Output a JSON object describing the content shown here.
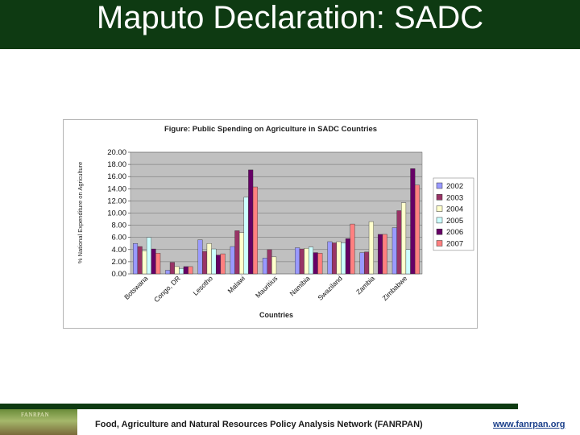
{
  "slide": {
    "title": "Maputo Declaration: SADC"
  },
  "footer": {
    "organization": "Food, Agriculture and Natural Resources Policy Analysis Network (FANRPAN)",
    "url": "www.fanrpan.org",
    "logo_text": "FANRPAN"
  },
  "colors": {
    "title_bar": "#0e3a12",
    "plot_bg": "#c0c0c0",
    "series": [
      "#9999ff",
      "#993366",
      "#ffffcc",
      "#ccffff",
      "#660066",
      "#ff8080"
    ]
  },
  "chart_data": {
    "type": "bar",
    "title": "Figure: Public Spending on Agriculture in SADC Countries",
    "xlabel": "Countries",
    "ylabel": "% National Expenditure on Agriculture",
    "ylim": [
      0,
      20
    ],
    "yticks": [
      "0.00",
      "2.00",
      "4.00",
      "6.00",
      "8.00",
      "10.00",
      "12.00",
      "14.00",
      "16.00",
      "18.00",
      "20.00"
    ],
    "grid": true,
    "legend": "right",
    "categories": [
      "Botswana",
      "Congo, DR",
      "Lesotho",
      "Malawi",
      "Mauritius",
      "Namibia",
      "Swaziland",
      "Zambia",
      "Zimbabwe"
    ],
    "series": [
      {
        "name": "2002",
        "values": [
          5.0,
          0.6,
          5.6,
          4.5,
          2.6,
          4.3,
          5.3,
          3.5,
          7.6
        ]
      },
      {
        "name": "2003",
        "values": [
          4.5,
          1.9,
          3.7,
          7.1,
          4.0,
          4.1,
          5.1,
          3.6,
          10.4
        ]
      },
      {
        "name": "2004",
        "values": [
          3.8,
          1.2,
          5.0,
          6.8,
          2.8,
          4.2,
          5.3,
          8.6,
          11.7
        ]
      },
      {
        "name": "2005",
        "values": [
          6.0,
          0.9,
          4.1,
          12.6,
          0,
          4.4,
          5.1,
          0,
          4.0
        ]
      },
      {
        "name": "2006",
        "values": [
          4.1,
          1.2,
          3.1,
          17.1,
          0,
          3.5,
          5.8,
          6.5,
          17.3
        ]
      },
      {
        "name": "2007",
        "values": [
          3.4,
          1.2,
          3.3,
          14.3,
          0,
          3.4,
          8.2,
          6.5,
          14.6
        ]
      }
    ]
  }
}
